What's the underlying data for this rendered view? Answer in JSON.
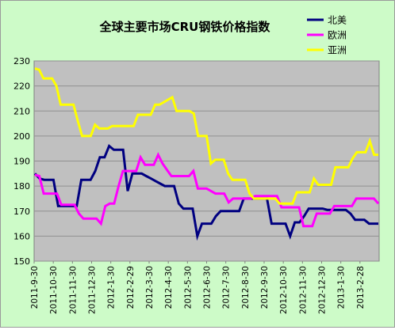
{
  "chart_data": {
    "type": "line",
    "title": "全球主要市场CRU钢铁价格指数",
    "xlabel": "",
    "ylabel": "",
    "ylim": [
      150,
      230
    ],
    "yticks": [
      150,
      160,
      170,
      180,
      190,
      200,
      210,
      220,
      230
    ],
    "grid": true,
    "legend_position": "top-right",
    "x_tick_labels": [
      "2011-9-30",
      "2011-10-30",
      "2011-11-30",
      "2011-12-30",
      "2012-1-30",
      "2012-2-29",
      "2012-3-30",
      "2012-4-30",
      "2012-5-30",
      "2012-6-30",
      "2012-7-30",
      "2012-8-30",
      "2012-9-30",
      "2012-10-30",
      "2012-11-30",
      "2012-12-30",
      "2013-1-30",
      "2013-2-28"
    ],
    "series": [
      {
        "name": "北美",
        "color": "#000080",
        "values": [
          185,
          183,
          182.5,
          182.5,
          182.5,
          172,
          172,
          172,
          172,
          172,
          182.5,
          182.5,
          182.5,
          186,
          191.5,
          191.5,
          196,
          194.5,
          194.5,
          194.5,
          178,
          185,
          185,
          185,
          184,
          183,
          182,
          181,
          180,
          180,
          180,
          173,
          171,
          171,
          171,
          160,
          165,
          165,
          165,
          168,
          170,
          170,
          170,
          170,
          170,
          175,
          175,
          175,
          175,
          175,
          175,
          165,
          165,
          165,
          165,
          160,
          165.5,
          165.5,
          168,
          171,
          171,
          171,
          171,
          170.5,
          170.5,
          170.5,
          170.5,
          170.5,
          169,
          166.5,
          166.5,
          166.5,
          165,
          165,
          165
        ]
      },
      {
        "name": "欧洲",
        "color": "#ff00ff",
        "values": [
          184.5,
          184,
          177,
          177,
          177,
          177,
          172.5,
          172.5,
          172.5,
          172.5,
          169,
          167,
          167,
          167,
          167,
          165,
          172,
          173,
          173,
          180,
          186,
          186,
          186,
          186,
          191.5,
          188.5,
          188.5,
          188.5,
          192.5,
          189,
          186.5,
          184,
          184,
          184,
          184,
          184,
          186,
          179,
          179,
          179,
          178,
          177,
          177,
          177,
          173.5,
          175,
          175,
          175,
          175,
          175,
          176,
          176,
          176,
          176,
          176,
          176,
          171.5,
          171.5,
          171.5,
          171.5,
          171.5,
          164,
          164,
          164,
          169,
          169,
          169,
          169,
          172,
          172,
          172,
          172,
          172,
          175,
          175,
          175,
          175,
          175,
          173
        ]
      },
      {
        "name": "亚洲",
        "color": "#ffff00",
        "values": [
          227,
          226.5,
          223,
          223,
          223,
          220,
          212.5,
          212.5,
          212.5,
          212.5,
          206,
          200,
          200,
          200,
          204.5,
          203,
          203,
          203,
          204,
          204,
          204,
          204,
          204,
          204,
          208.5,
          208.5,
          208.5,
          208.5,
          212.5,
          212.5,
          213.5,
          214.5,
          215.5,
          210,
          210,
          210,
          210,
          209,
          200,
          200,
          200,
          189,
          190.5,
          190.5,
          190.5,
          185,
          182.5,
          182.5,
          182.5,
          182.5,
          177,
          175,
          175,
          175,
          175,
          175,
          175,
          173,
          173,
          173,
          173,
          177.5,
          177.5,
          177.5,
          177.5,
          183,
          180.5,
          180.5,
          180.5,
          180.5,
          187.5,
          187.5,
          187.5,
          187.5,
          191,
          193.5,
          193.5,
          193.5,
          198,
          192.5,
          192.5
        ]
      }
    ]
  }
}
